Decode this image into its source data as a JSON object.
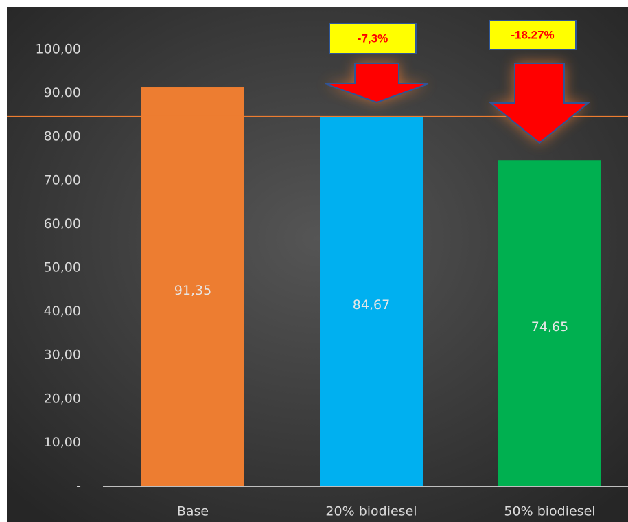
{
  "chart_data": {
    "type": "bar",
    "categories": [
      "Base",
      "20% biodiesel",
      "50% biodiesel"
    ],
    "values": [
      91.35,
      84.67,
      74.65
    ],
    "value_labels": [
      "91,35",
      "84,67",
      "74,65"
    ],
    "ylim": [
      0,
      100
    ],
    "y_tick_values": [
      0,
      10,
      20,
      30,
      40,
      50,
      60,
      70,
      80,
      90,
      100
    ],
    "y_tick_labels": [
      "-",
      "10,00",
      "20,00",
      "30,00",
      "40,00",
      "50,00",
      "60,00",
      "70,00",
      "80,00",
      "90,00",
      "100,00"
    ],
    "grid": false,
    "legend": "none",
    "reference_line": {
      "value": 84.67
    },
    "annotations": [
      {
        "category": "20% biodiesel",
        "text": "-7,3%"
      },
      {
        "category": "50% biodiesel",
        "text": "-18.27%"
      }
    ],
    "colors": {
      "bars": [
        "#ED7D31",
        "#00B0F0",
        "#00B050"
      ],
      "background_center": "#555555",
      "background_edge": "#262626",
      "axis_text": "#d9d9d9",
      "value_text": "#e7e6e6",
      "axis_line": "#bfbfbf",
      "reference_line": "#ED7D31",
      "arrow_fill": "#FF0000",
      "arrow_stroke": "#2F5597",
      "arrow_glow": "#ED7D31",
      "callout_fill": "#FFFF00",
      "callout_border": "#2F5597",
      "callout_text": "#FF0000"
    }
  }
}
